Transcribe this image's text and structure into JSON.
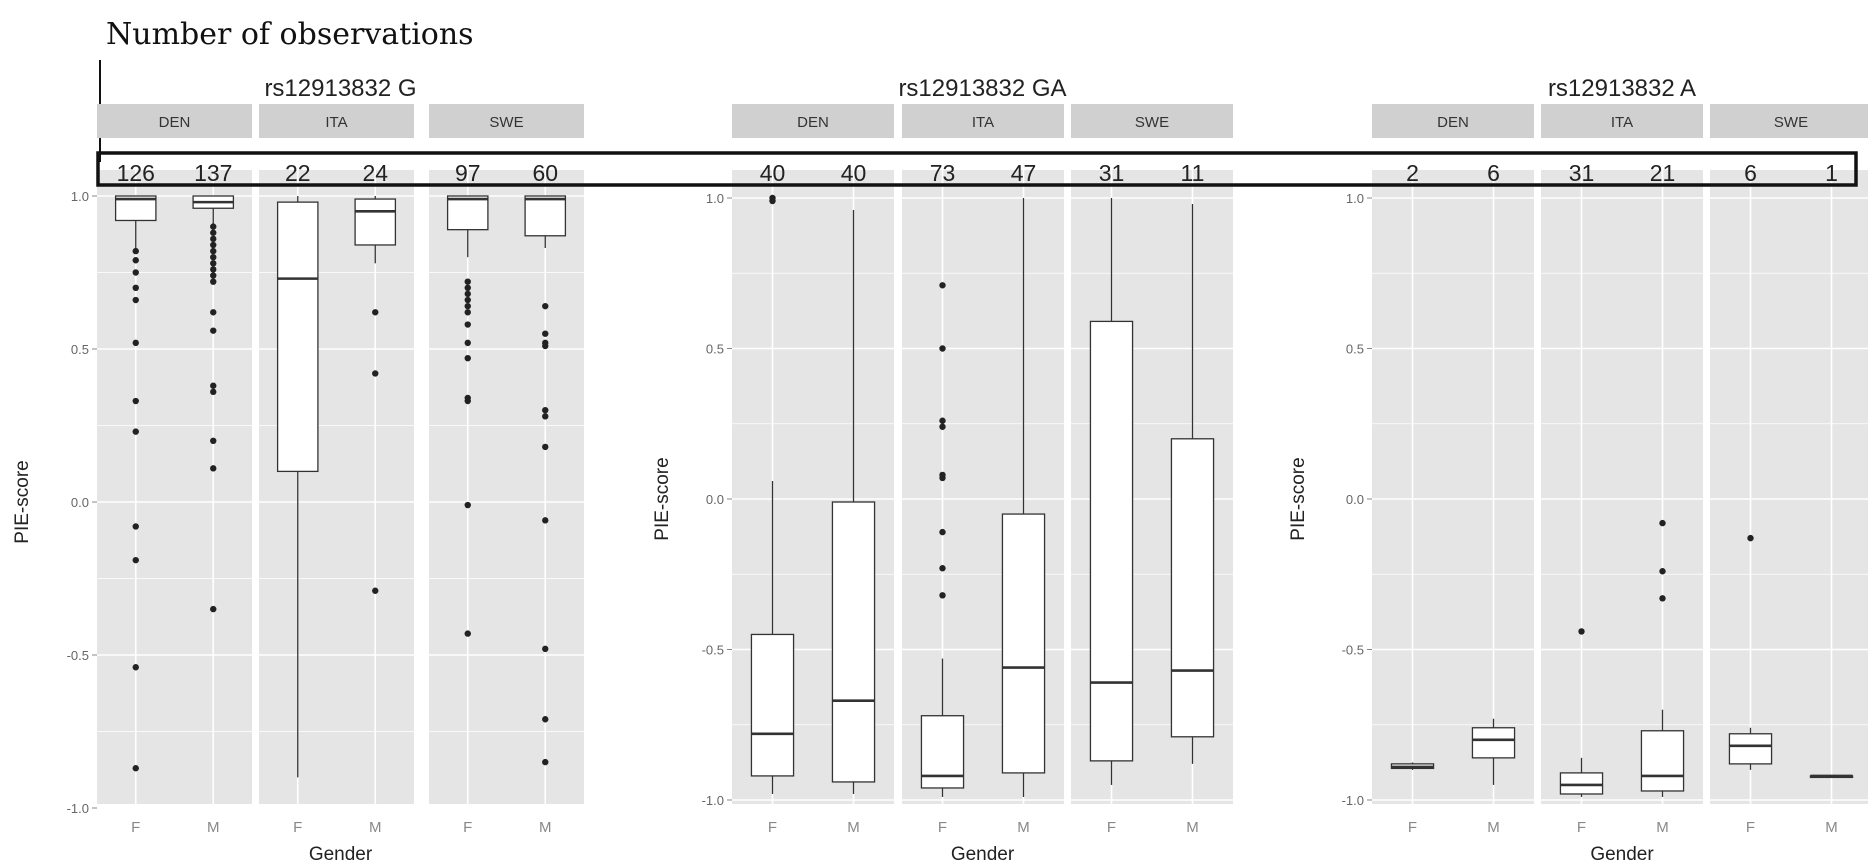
{
  "annotation": {
    "text": "Number of observations"
  },
  "chart_data": [
    {
      "type": "box",
      "title": "rs12913832 G",
      "xlabel": "Gender",
      "ylabel": "PIE-score",
      "ylim": [
        -1.0,
        1.0
      ],
      "yticks": [
        "1.0",
        "0.5",
        "0.0",
        "-0.5",
        "-1.0"
      ],
      "categories": [
        "F",
        "M"
      ],
      "facets": [
        {
          "name": "DEN",
          "boxes": [
            {
              "gender": "F",
              "n": "126",
              "min": 0.83,
              "q1": 0.92,
              "median": 0.99,
              "q3": 1.0,
              "max": 1.0,
              "outliers": [
                0.82,
                0.79,
                0.75,
                0.7,
                0.66,
                0.52,
                0.33,
                0.23,
                -0.08,
                -0.19,
                -0.54,
                -0.87
              ]
            },
            {
              "gender": "M",
              "n": "137",
              "min": 0.91,
              "q1": 0.96,
              "median": 0.98,
              "q3": 1.0,
              "max": 1.0,
              "outliers": [
                0.9,
                0.88,
                0.86,
                0.84,
                0.82,
                0.8,
                0.78,
                0.76,
                0.74,
                0.72,
                0.62,
                0.56,
                0.38,
                0.36,
                0.2,
                0.11,
                -0.35
              ]
            }
          ]
        },
        {
          "name": "ITA",
          "boxes": [
            {
              "gender": "F",
              "n": "22",
              "min": -0.9,
              "q1": 0.1,
              "median": 0.73,
              "q3": 0.98,
              "max": 1.0,
              "outliers": []
            },
            {
              "gender": "M",
              "n": "24",
              "min": 0.78,
              "q1": 0.84,
              "median": 0.95,
              "q3": 0.99,
              "max": 1.0,
              "outliers": [
                0.62,
                0.42,
                -0.29
              ]
            }
          ]
        },
        {
          "name": "SWE",
          "boxes": [
            {
              "gender": "F",
              "n": "97",
              "min": 0.8,
              "q1": 0.89,
              "median": 0.99,
              "q3": 1.0,
              "max": 1.0,
              "outliers": [
                0.72,
                0.7,
                0.68,
                0.66,
                0.64,
                0.62,
                0.58,
                0.52,
                0.47,
                0.34,
                0.33,
                -0.01,
                -0.43
              ]
            },
            {
              "gender": "M",
              "n": "60",
              "min": 0.83,
              "q1": 0.87,
              "median": 0.99,
              "q3": 1.0,
              "max": 1.0,
              "outliers": [
                0.64,
                0.55,
                0.52,
                0.51,
                0.3,
                0.28,
                0.18,
                -0.06,
                -0.48,
                -0.71,
                -0.85
              ]
            }
          ]
        }
      ]
    },
    {
      "type": "box",
      "title": "rs12913832 GA",
      "xlabel": "Gender",
      "ylabel": "PIE-score",
      "ylim": [
        -1.0,
        1.0
      ],
      "yticks": [
        "1.0",
        "0.5",
        "0.0",
        "-0.5",
        "-1.0"
      ],
      "categories": [
        "F",
        "M"
      ],
      "facets": [
        {
          "name": "DEN",
          "boxes": [
            {
              "gender": "F",
              "n": "40",
              "min": -0.98,
              "q1": -0.92,
              "median": -0.78,
              "q3": -0.45,
              "max": 0.06,
              "outliers": [
                1.0,
                0.99
              ]
            },
            {
              "gender": "M",
              "n": "40",
              "min": -0.98,
              "q1": -0.94,
              "median": -0.67,
              "q3": -0.01,
              "max": 0.96,
              "outliers": []
            }
          ]
        },
        {
          "name": "ITA",
          "boxes": [
            {
              "gender": "F",
              "n": "73",
              "min": -0.99,
              "q1": -0.96,
              "median": -0.92,
              "q3": -0.72,
              "max": -0.53,
              "outliers": [
                0.71,
                0.5,
                0.26,
                0.24,
                0.08,
                0.07,
                -0.11,
                -0.23,
                -0.32
              ]
            },
            {
              "gender": "M",
              "n": "47",
              "min": -0.99,
              "q1": -0.91,
              "median": -0.56,
              "q3": -0.05,
              "max": 1.0,
              "outliers": []
            }
          ]
        },
        {
          "name": "SWE",
          "boxes": [
            {
              "gender": "F",
              "n": "31",
              "min": -0.95,
              "q1": -0.87,
              "median": -0.61,
              "q3": 0.59,
              "max": 1.0,
              "outliers": []
            },
            {
              "gender": "M",
              "n": "11",
              "min": -0.88,
              "q1": -0.79,
              "median": -0.57,
              "q3": 0.2,
              "max": 0.98,
              "outliers": []
            }
          ]
        }
      ]
    },
    {
      "type": "box",
      "title": "rs12913832 A",
      "xlabel": "Gender",
      "ylabel": "PIE-score",
      "ylim": [
        -1.0,
        1.0
      ],
      "yticks": [
        "1.0",
        "0.5",
        "0.0",
        "-0.5",
        "-1.0"
      ],
      "categories": [
        "F",
        "M"
      ],
      "facets": [
        {
          "name": "DEN",
          "boxes": [
            {
              "gender": "F",
              "n": "2",
              "min": -0.9,
              "q1": -0.895,
              "median": -0.89,
              "q3": -0.88,
              "max": -0.875,
              "outliers": []
            },
            {
              "gender": "M",
              "n": "6",
              "min": -0.95,
              "q1": -0.86,
              "median": -0.8,
              "q3": -0.76,
              "max": -0.73,
              "outliers": []
            }
          ]
        },
        {
          "name": "ITA",
          "boxes": [
            {
              "gender": "F",
              "n": "31",
              "min": -0.99,
              "q1": -0.98,
              "median": -0.95,
              "q3": -0.91,
              "max": -0.86,
              "outliers": [
                -0.44
              ]
            },
            {
              "gender": "M",
              "n": "21",
              "min": -0.99,
              "q1": -0.97,
              "median": -0.92,
              "q3": -0.77,
              "max": -0.7,
              "outliers": [
                -0.08,
                -0.24,
                -0.33
              ]
            }
          ]
        },
        {
          "name": "SWE",
          "boxes": [
            {
              "gender": "F",
              "n": "6",
              "min": -0.9,
              "q1": -0.88,
              "median": -0.82,
              "q3": -0.78,
              "max": -0.76,
              "outliers": [
                -0.13
              ]
            },
            {
              "gender": "M",
              "n": "1",
              "min": -0.92,
              "q1": -0.92,
              "median": -0.92,
              "q3": -0.92,
              "max": -0.92,
              "outliers": []
            }
          ]
        }
      ]
    }
  ]
}
